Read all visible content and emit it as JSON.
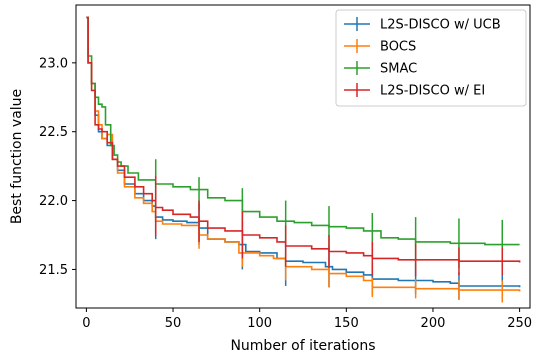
{
  "chart_data": {
    "type": "line",
    "title": "",
    "xlabel": "Number of iterations",
    "ylabel": "Best function value",
    "xlim": [
      -6,
      256
    ],
    "ylim": [
      21.22,
      23.42
    ],
    "xticks": [
      0,
      50,
      100,
      150,
      200,
      250
    ],
    "yticks": [
      21.5,
      22.0,
      22.5,
      23.0
    ],
    "xtick_labels": [
      "0",
      "50",
      "100",
      "150",
      "200",
      "250"
    ],
    "ytick_labels": [
      "21.5",
      "22.0",
      "22.5",
      "23.0"
    ],
    "grid": false,
    "legend_position": "top-right",
    "series": [
      {
        "name": "L2S-DISCO w/ UCB",
        "color": "#1f77b4",
        "points": [
          [
            0,
            23.33
          ],
          [
            1,
            23.0
          ],
          [
            3,
            22.85
          ],
          [
            5,
            22.62
          ],
          [
            7,
            22.5
          ],
          [
            9,
            22.45
          ],
          [
            12,
            22.4
          ],
          [
            15,
            22.3
          ],
          [
            18,
            22.22
          ],
          [
            22,
            22.12
          ],
          [
            28,
            22.05
          ],
          [
            33,
            22.0
          ],
          [
            38,
            21.96
          ],
          [
            40,
            21.88
          ],
          [
            44,
            21.86
          ],
          [
            50,
            21.85
          ],
          [
            58,
            21.84
          ],
          [
            65,
            21.8
          ],
          [
            70,
            21.72
          ],
          [
            80,
            21.7
          ],
          [
            88,
            21.68
          ],
          [
            92,
            21.63
          ],
          [
            100,
            21.62
          ],
          [
            110,
            21.58
          ],
          [
            115,
            21.56
          ],
          [
            125,
            21.55
          ],
          [
            138,
            21.52
          ],
          [
            142,
            21.5
          ],
          [
            150,
            21.48
          ],
          [
            160,
            21.46
          ],
          [
            165,
            21.43
          ],
          [
            180,
            21.42
          ],
          [
            190,
            21.42
          ],
          [
            200,
            21.41
          ],
          [
            210,
            21.4
          ],
          [
            215,
            21.38
          ],
          [
            230,
            21.38
          ],
          [
            250,
            21.37
          ]
        ],
        "errorbars": [
          [
            40,
            21.9,
            0.18
          ],
          [
            65,
            21.83,
            0.15
          ],
          [
            90,
            21.67,
            0.17
          ],
          [
            115,
            21.55,
            0.17
          ],
          [
            140,
            21.52,
            0.15
          ],
          [
            165,
            21.43,
            0.12
          ],
          [
            190,
            21.42,
            0.1
          ],
          [
            215,
            21.38,
            0.1
          ],
          [
            240,
            21.37,
            0.1
          ]
        ]
      },
      {
        "name": "BOCS",
        "color": "#ff7f0e",
        "points": [
          [
            0,
            23.33
          ],
          [
            1,
            23.0
          ],
          [
            3,
            22.85
          ],
          [
            5,
            22.65
          ],
          [
            7,
            22.55
          ],
          [
            9,
            22.45
          ],
          [
            12,
            22.48
          ],
          [
            15,
            22.3
          ],
          [
            18,
            22.2
          ],
          [
            22,
            22.1
          ],
          [
            28,
            22.02
          ],
          [
            33,
            21.98
          ],
          [
            38,
            21.92
          ],
          [
            40,
            21.85
          ],
          [
            44,
            21.83
          ],
          [
            55,
            21.82
          ],
          [
            65,
            21.75
          ],
          [
            70,
            21.72
          ],
          [
            80,
            21.7
          ],
          [
            88,
            21.62
          ],
          [
            100,
            21.6
          ],
          [
            108,
            21.58
          ],
          [
            115,
            21.52
          ],
          [
            130,
            21.5
          ],
          [
            140,
            21.47
          ],
          [
            150,
            21.45
          ],
          [
            160,
            21.42
          ],
          [
            165,
            21.37
          ],
          [
            180,
            21.37
          ],
          [
            190,
            21.36
          ],
          [
            200,
            21.36
          ],
          [
            215,
            21.35
          ],
          [
            230,
            21.35
          ],
          [
            250,
            21.34
          ]
        ],
        "errorbars": [
          [
            40,
            21.86,
            0.1
          ],
          [
            65,
            21.75,
            0.1
          ],
          [
            90,
            21.62,
            0.1
          ],
          [
            115,
            21.52,
            0.1
          ],
          [
            140,
            21.47,
            0.1
          ],
          [
            165,
            21.37,
            0.07
          ],
          [
            190,
            21.36,
            0.07
          ],
          [
            215,
            21.35,
            0.07
          ],
          [
            240,
            21.34,
            0.08
          ]
        ]
      },
      {
        "name": "SMAC",
        "color": "#2ca02c",
        "points": [
          [
            0,
            23.33
          ],
          [
            1,
            23.05
          ],
          [
            3,
            22.85
          ],
          [
            5,
            22.75
          ],
          [
            7,
            22.7
          ],
          [
            9,
            22.68
          ],
          [
            11,
            22.55
          ],
          [
            14,
            22.4
          ],
          [
            16,
            22.33
          ],
          [
            18,
            22.28
          ],
          [
            20,
            22.25
          ],
          [
            24,
            22.2
          ],
          [
            30,
            22.15
          ],
          [
            40,
            22.12
          ],
          [
            50,
            22.1
          ],
          [
            60,
            22.08
          ],
          [
            70,
            22.02
          ],
          [
            80,
            22.0
          ],
          [
            90,
            21.92
          ],
          [
            100,
            21.88
          ],
          [
            110,
            21.85
          ],
          [
            120,
            21.84
          ],
          [
            130,
            21.82
          ],
          [
            140,
            21.81
          ],
          [
            150,
            21.8
          ],
          [
            160,
            21.78
          ],
          [
            170,
            21.73
          ],
          [
            180,
            21.72
          ],
          [
            190,
            21.7
          ],
          [
            210,
            21.69
          ],
          [
            230,
            21.68
          ],
          [
            250,
            21.68
          ]
        ],
        "errorbars": [
          [
            40,
            22.12,
            0.18
          ],
          [
            65,
            22.05,
            0.12
          ],
          [
            90,
            21.95,
            0.14
          ],
          [
            115,
            21.85,
            0.15
          ],
          [
            140,
            21.81,
            0.15
          ],
          [
            165,
            21.76,
            0.15
          ],
          [
            190,
            21.7,
            0.18
          ],
          [
            215,
            21.69,
            0.18
          ],
          [
            240,
            21.68,
            0.18
          ]
        ]
      },
      {
        "name": "L2S-DISCO w/ EI",
        "color": "#d62728",
        "points": [
          [
            0,
            23.33
          ],
          [
            1,
            23.0
          ],
          [
            3,
            22.8
          ],
          [
            5,
            22.55
          ],
          [
            7,
            22.52
          ],
          [
            9,
            22.5
          ],
          [
            12,
            22.42
          ],
          [
            15,
            22.3
          ],
          [
            18,
            22.25
          ],
          [
            22,
            22.17
          ],
          [
            28,
            22.1
          ],
          [
            33,
            22.05
          ],
          [
            38,
            22.0
          ],
          [
            40,
            21.95
          ],
          [
            44,
            21.93
          ],
          [
            50,
            21.9
          ],
          [
            60,
            21.88
          ],
          [
            65,
            21.85
          ],
          [
            70,
            21.8
          ],
          [
            80,
            21.78
          ],
          [
            90,
            21.75
          ],
          [
            100,
            21.73
          ],
          [
            110,
            21.7
          ],
          [
            115,
            21.67
          ],
          [
            130,
            21.65
          ],
          [
            140,
            21.63
          ],
          [
            150,
            21.62
          ],
          [
            160,
            21.6
          ],
          [
            165,
            21.58
          ],
          [
            180,
            21.57
          ],
          [
            200,
            21.57
          ],
          [
            215,
            21.56
          ],
          [
            230,
            21.56
          ],
          [
            250,
            21.55
          ]
        ],
        "errorbars": [
          [
            40,
            21.96,
            0.22
          ],
          [
            65,
            21.85,
            0.15
          ],
          [
            90,
            21.75,
            0.17
          ],
          [
            115,
            21.67,
            0.15
          ],
          [
            140,
            21.63,
            0.12
          ],
          [
            165,
            21.58,
            0.12
          ],
          [
            190,
            21.57,
            0.12
          ],
          [
            215,
            21.56,
            0.1
          ],
          [
            240,
            21.56,
            0.1
          ]
        ]
      }
    ]
  }
}
